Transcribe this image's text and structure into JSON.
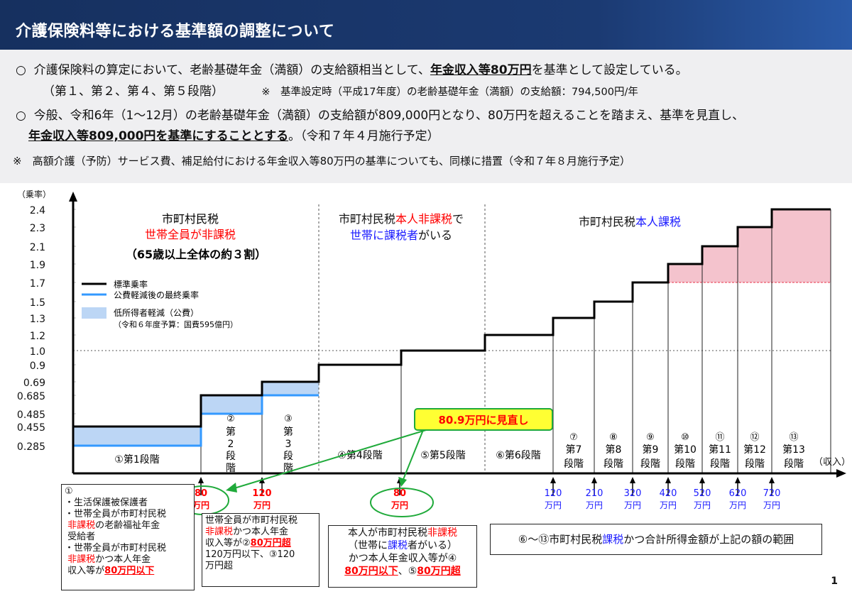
{
  "title": "介護保険料等における基準額の調整について",
  "info": {
    "line1_bullet": "○",
    "line1_pre": "介護保険料の算定において、老齢基礎年金（満額）の支給額相当として、",
    "line1_em": "年金収入等80万円",
    "line1_post": "を基準として設定している。",
    "line2_a": "（第１、第２、第４、第５段階）",
    "line2_b": "※　基準設定時（平成17年度）の老齢基礎年金（満額）の支給額：794,500円/年",
    "line3_bullet": "○",
    "line3": "今般、令和6年（1～12月）の老齢基礎年金（満額）の支給額が809,000円となり、80万円を超えることを踏まえ、基準を見直し、",
    "line4_em": "年金収入等809,000円を基準にすることとする",
    "line4_post": "。（令和７年４月施行予定）",
    "note": "※　高額介護（予防）サービス費、補足給付における年金収入等80万円の基準についても、同様に措置（令和７年８月施行予定）"
  },
  "chart_data": {
    "type": "step",
    "ylabel": "（乗率）",
    "xlabel": "（収入）",
    "y_ticks": [
      "2.4",
      "2.3",
      "2.1",
      "1.9",
      "1.7",
      "1.5",
      "1.3",
      "1.2",
      "1.0",
      "0.9",
      "0.69",
      "0.685",
      "0.485",
      "0.455",
      "0.285"
    ],
    "stages": [
      {
        "name": "①第1段階",
        "standard": 0.455,
        "final": 0.285
      },
      {
        "name": "②第2段階",
        "standard": 0.685,
        "final": 0.485
      },
      {
        "name": "③第3段階",
        "standard": 0.69,
        "final": 0.685
      },
      {
        "name": "④第4段階",
        "standard": 0.9,
        "final": 0.9
      },
      {
        "name": "⑤第5段階",
        "standard": 1.0,
        "final": 1.0
      },
      {
        "name": "⑥第6段階",
        "standard": 1.2,
        "final": 1.2
      },
      {
        "name": "⑦第7段階",
        "standard": 1.3,
        "final": 1.3
      },
      {
        "name": "⑧第8段階",
        "standard": 1.5,
        "final": 1.5
      },
      {
        "name": "⑨第9段階",
        "standard": 1.7,
        "final": 1.7
      },
      {
        "name": "⑩第10段階",
        "standard": 1.9,
        "final": 1.9
      },
      {
        "name": "⑪第11段階",
        "standard": 2.1,
        "final": 2.1
      },
      {
        "name": "⑫第12段階",
        "standard": 2.3,
        "final": 2.3
      },
      {
        "name": "⑬第13段階",
        "standard": 2.4,
        "final": 2.4
      }
    ],
    "stage_labels": {
      "s1": "①第1段階",
      "s2_num": "②",
      "s2_chars": [
        "第",
        "2",
        "段",
        "階"
      ],
      "s3_num": "③",
      "s3_chars": [
        "第",
        "3",
        "段",
        "階"
      ],
      "s4": "④第4段階",
      "s5": "⑤第5段階",
      "s6": "⑥第6段階",
      "s7": [
        "⑦",
        "第7",
        "段階"
      ],
      "s8": [
        "⑧",
        "第8",
        "段階"
      ],
      "s9": [
        "⑨",
        "第9",
        "段階"
      ],
      "s10": [
        "⑩",
        "第10",
        "段階"
      ],
      "s11": [
        "⑪",
        "第11",
        "段階"
      ],
      "s12": [
        "⑫",
        "第12",
        "段階"
      ],
      "s13": [
        "⑬",
        "第13",
        "段階"
      ]
    },
    "x_thresholds": [
      {
        "label": [
          "80",
          "万円"
        ],
        "color": "#ff0000"
      },
      {
        "label": [
          "120",
          "万円"
        ],
        "color": "#ff0000"
      },
      {
        "label": [
          "80",
          "万円"
        ],
        "color": "#ff0000"
      },
      {
        "label": [
          "120",
          "万円"
        ],
        "color": "#1a1aff"
      },
      {
        "label": [
          "210",
          "万円"
        ],
        "color": "#1a1aff"
      },
      {
        "label": [
          "320",
          "万円"
        ],
        "color": "#1a1aff"
      },
      {
        "label": [
          "420",
          "万円"
        ],
        "color": "#1a1aff"
      },
      {
        "label": [
          "520",
          "万円"
        ],
        "color": "#1a1aff"
      },
      {
        "label": [
          "620",
          "万円"
        ],
        "color": "#1a1aff"
      },
      {
        "label": [
          "720",
          "万円"
        ],
        "color": "#1a1aff"
      }
    ],
    "legend": {
      "standard": "標準乗率",
      "final": "公費軽減後の最終乗率",
      "reduction": "低所得者軽減（公費）",
      "reduction_note": "（令和６年度予算：国費595億円）"
    },
    "region_headers": {
      "r1_line1": "市町村民税",
      "r1_line2": "世帯全員が非課税",
      "r1_line3": "（65歳以上全体の約３割）",
      "r2_a": "市町村民税",
      "r2_b": "本人非課税",
      "r2_c": "で",
      "r2_d": "世帯に",
      "r2_e": "課税者",
      "r2_f": "がいる",
      "r3_a": "市町村民税",
      "r3_b": "本人課税"
    },
    "callout": "80.9万円に見直し",
    "colors": {
      "standard": "#000000",
      "final": "#3399ff",
      "reduction": "#bcd6f5",
      "surcharge": "#f4c3cd",
      "surcharge_line": "#e8334a",
      "callout_border": "#1faa3a",
      "callout_fill": "#ffff33"
    }
  },
  "boxes": {
    "box1": {
      "num": "①",
      "l1": "・生活保護被保護者",
      "l2a": "・世帯全員が市町村民税",
      "l2b": "非課税",
      "l2c": "の老齢福祉年金",
      "l2d": "受給者",
      "l3a": "・世帯全員が市町村民税",
      "l3b": "非課税",
      "l3c": "かつ本人年金",
      "l3d": "収入等が",
      "l3e": "80万円以下"
    },
    "box2": {
      "a": "世帯全員が市町村民税",
      "b": "非課税",
      "c": "かつ本人年金",
      "d": "収入等が②",
      "e": "80万円超",
      "f": "120万円以下、③120",
      "g": "万円超"
    },
    "box3": {
      "a": "本人が市町村民税",
      "b": "非課税",
      "c": "（世帯に",
      "d": "課税",
      "e": "者がいる）",
      "f": "かつ本人年金収入等が④",
      "g": "80万円以下",
      "h": "、⑤",
      "i": "80万円超"
    },
    "box4": {
      "a": "⑥～⑬市町村民税",
      "b": "課税",
      "c": "かつ合計所得金額が上記の額の範囲"
    }
  },
  "page_number": "1"
}
